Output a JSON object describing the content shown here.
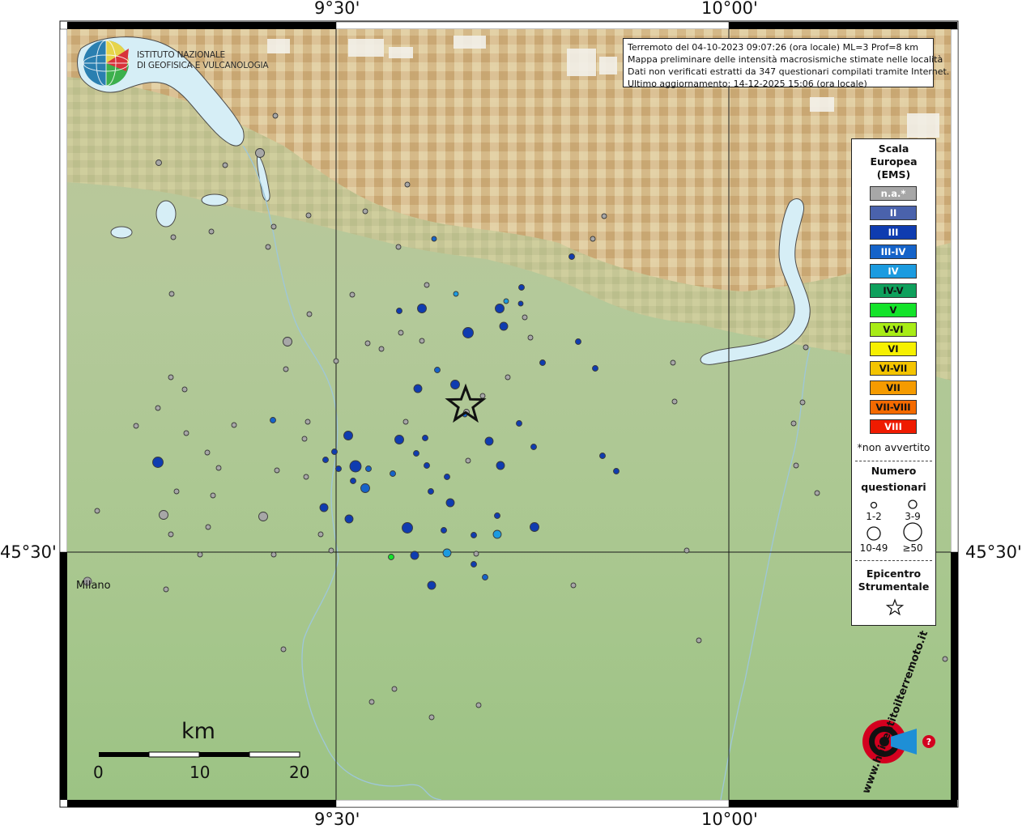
{
  "header": {
    "top_left_lon": "9°30'",
    "top_right_lon": "10°00'",
    "bottom_left_lon": "9°30'",
    "bottom_right_lon": "10°00'",
    "left_lat": "45°30'",
    "right_lat": "45°30'"
  },
  "institute": {
    "line1": "ISTITUTO NAZIONALE",
    "line2": "DI GEOFISICA E VULCANOLOGIA"
  },
  "info": {
    "line1": "Terremoto del 04-10-2023 09:07:26 (ora locale) ML=3 Prof=8 km",
    "line2": "Mappa preliminare delle intensità macrosismiche stimate nelle località",
    "line3": "Dati non verificati estratti da 347 questionari compilati tramite Internet.",
    "line4": "Ultimo aggiornamento: 14-12-2025 15:06 (ora locale)"
  },
  "legend": {
    "title1": "Scala",
    "title2": "Europea",
    "title3": "(EMS)",
    "scale": [
      {
        "label": "n.a.*",
        "color": "#a7a7a7",
        "text": "#ffffff"
      },
      {
        "label": "II",
        "color": "#4a62ac",
        "text": "#ffffff"
      },
      {
        "label": "III",
        "color": "#0f3cb0",
        "text": "#ffffff"
      },
      {
        "label": "III-IV",
        "color": "#1563c9",
        "text": "#ffffff"
      },
      {
        "label": "IV",
        "color": "#1b9be0",
        "text": "#ffffff"
      },
      {
        "label": "IV-V",
        "color": "#0ea05c",
        "text": "#111111"
      },
      {
        "label": "V",
        "color": "#14e32a",
        "text": "#111111"
      },
      {
        "label": "V-VI",
        "color": "#a8ec16",
        "text": "#111111"
      },
      {
        "label": "VI",
        "color": "#f6f000",
        "text": "#111111"
      },
      {
        "label": "VI-VII",
        "color": "#f4c400",
        "text": "#111111"
      },
      {
        "label": "VII",
        "color": "#f59b00",
        "text": "#111111"
      },
      {
        "label": "VII-VIII",
        "color": "#f46a00",
        "text": "#111111"
      },
      {
        "label": "VIII",
        "color": "#ef1b00",
        "text": "#ffffff"
      }
    ],
    "not_felt": "*non avvertito",
    "count_title1": "Numero",
    "count_title2": "questionari",
    "count_bins": [
      "1-2",
      "3-9",
      "10-49",
      "≥50"
    ],
    "epicenter_title1": "Epicentro",
    "epicenter_title2": "Strumentale"
  },
  "scalebar": {
    "unit": "km",
    "ticks": [
      "0",
      "10",
      "20"
    ]
  },
  "places": {
    "milano": "Milano"
  },
  "watermark": {
    "site": "www.haisentitoilterremoto.it",
    "colors": {
      "red": "#d3001f",
      "blue": "#1e8fd6",
      "black": "#111111"
    }
  },
  "intensity_colors": {
    "na": "#a7a7a7",
    "II": "#4a62ac",
    "III": "#0f3cb0",
    "IIIIV": "#1563c9",
    "IV": "#1b9be0",
    "V": "#14e32a"
  }
}
